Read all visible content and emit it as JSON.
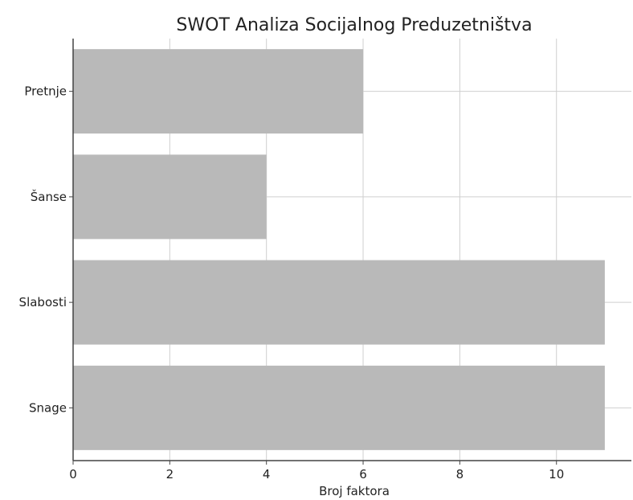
{
  "chart_data": {
    "type": "bar",
    "orientation": "horizontal",
    "title": "SWOT Analiza Socijalnog Preduzetništva",
    "xlabel": "Broj faktora",
    "ylabel": "",
    "categories": [
      "Snage",
      "Slabosti",
      "Šanse",
      "Pretnje"
    ],
    "values": [
      11,
      11,
      4,
      6
    ],
    "xlim": [
      0,
      11.55
    ],
    "xticks": [
      0,
      2,
      4,
      6,
      8,
      10
    ],
    "bar_color": "#b9b9b9",
    "grid": true,
    "legend": "none"
  }
}
